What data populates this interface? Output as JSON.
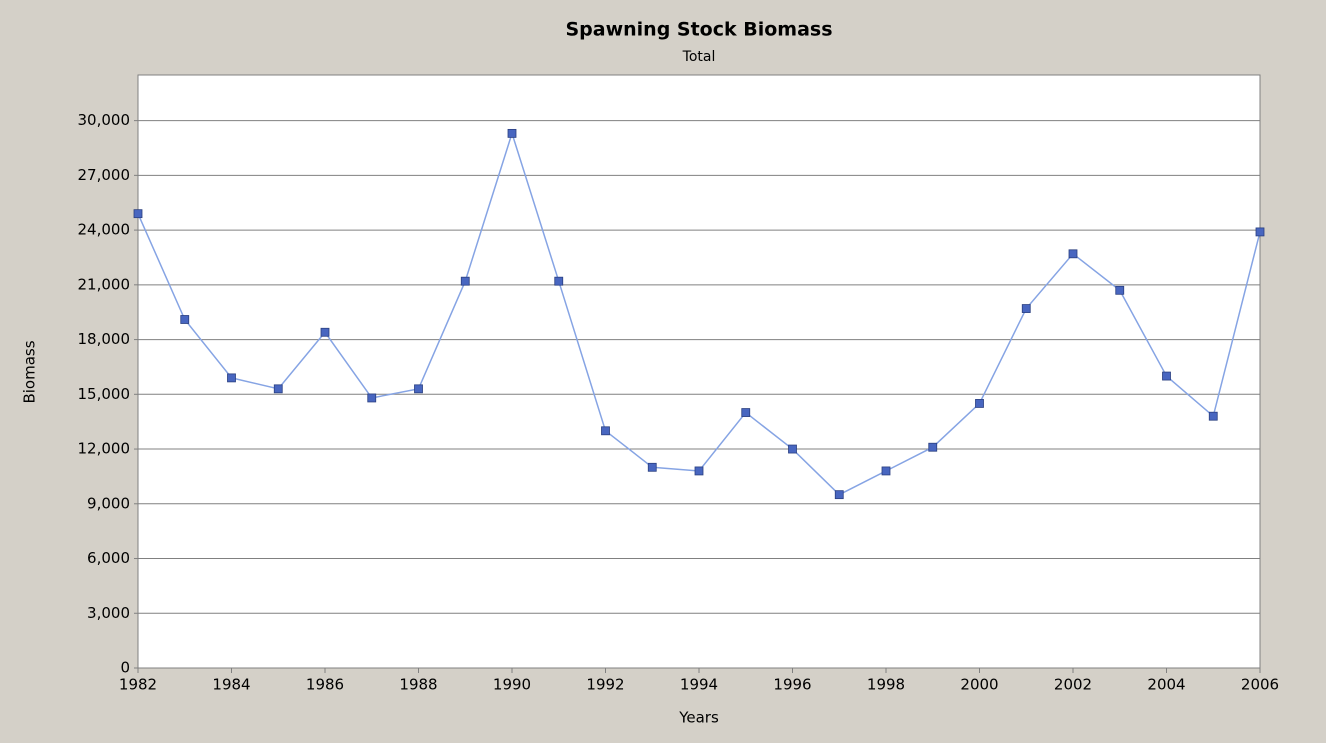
{
  "chart_data": {
    "type": "line",
    "title": "Spawning Stock Biomass",
    "subtitle": "Total",
    "x_label": "Years",
    "y_label": "Biomass",
    "x": [
      1982,
      1983,
      1984,
      1985,
      1986,
      1987,
      1988,
      1989,
      1990,
      1991,
      1992,
      1993,
      1994,
      1995,
      1996,
      1997,
      1998,
      1999,
      2000,
      2001,
      2002,
      2003,
      2004,
      2005,
      2006
    ],
    "series": [
      {
        "name": "Total",
        "color": "#86a4e4",
        "marker_color": "#4866c0",
        "values": [
          24900,
          19100,
          15900,
          15300,
          18400,
          14800,
          15300,
          21200,
          29300,
          21200,
          13000,
          11000,
          10800,
          14000,
          12000,
          9500,
          10800,
          12100,
          14500,
          19700,
          22700,
          20700,
          16000,
          13800,
          23900
        ]
      }
    ],
    "xlim": [
      1982,
      2006
    ],
    "xticks": [
      1982,
      1984,
      1986,
      1988,
      1990,
      1992,
      1994,
      1996,
      1998,
      2000,
      2002,
      2004,
      2006
    ],
    "ylim": [
      0,
      32500
    ],
    "yticks": [
      0,
      {
        "value": 3000,
        "label": "3,000"
      },
      {
        "value": 6000,
        "label": "6,000"
      },
      {
        "value": 9000,
        "label": "9,000"
      },
      {
        "value": 12000,
        "label": "12,000"
      },
      {
        "value": 15000,
        "label": "15,000"
      },
      {
        "value": 18000,
        "label": "18,000"
      },
      {
        "value": 21000,
        "label": "21,000"
      },
      {
        "value": 24000,
        "label": "24,000"
      },
      {
        "value": 27000,
        "label": "27,000"
      },
      {
        "value": 30000,
        "label": "30,000"
      }
    ],
    "grid": true
  }
}
